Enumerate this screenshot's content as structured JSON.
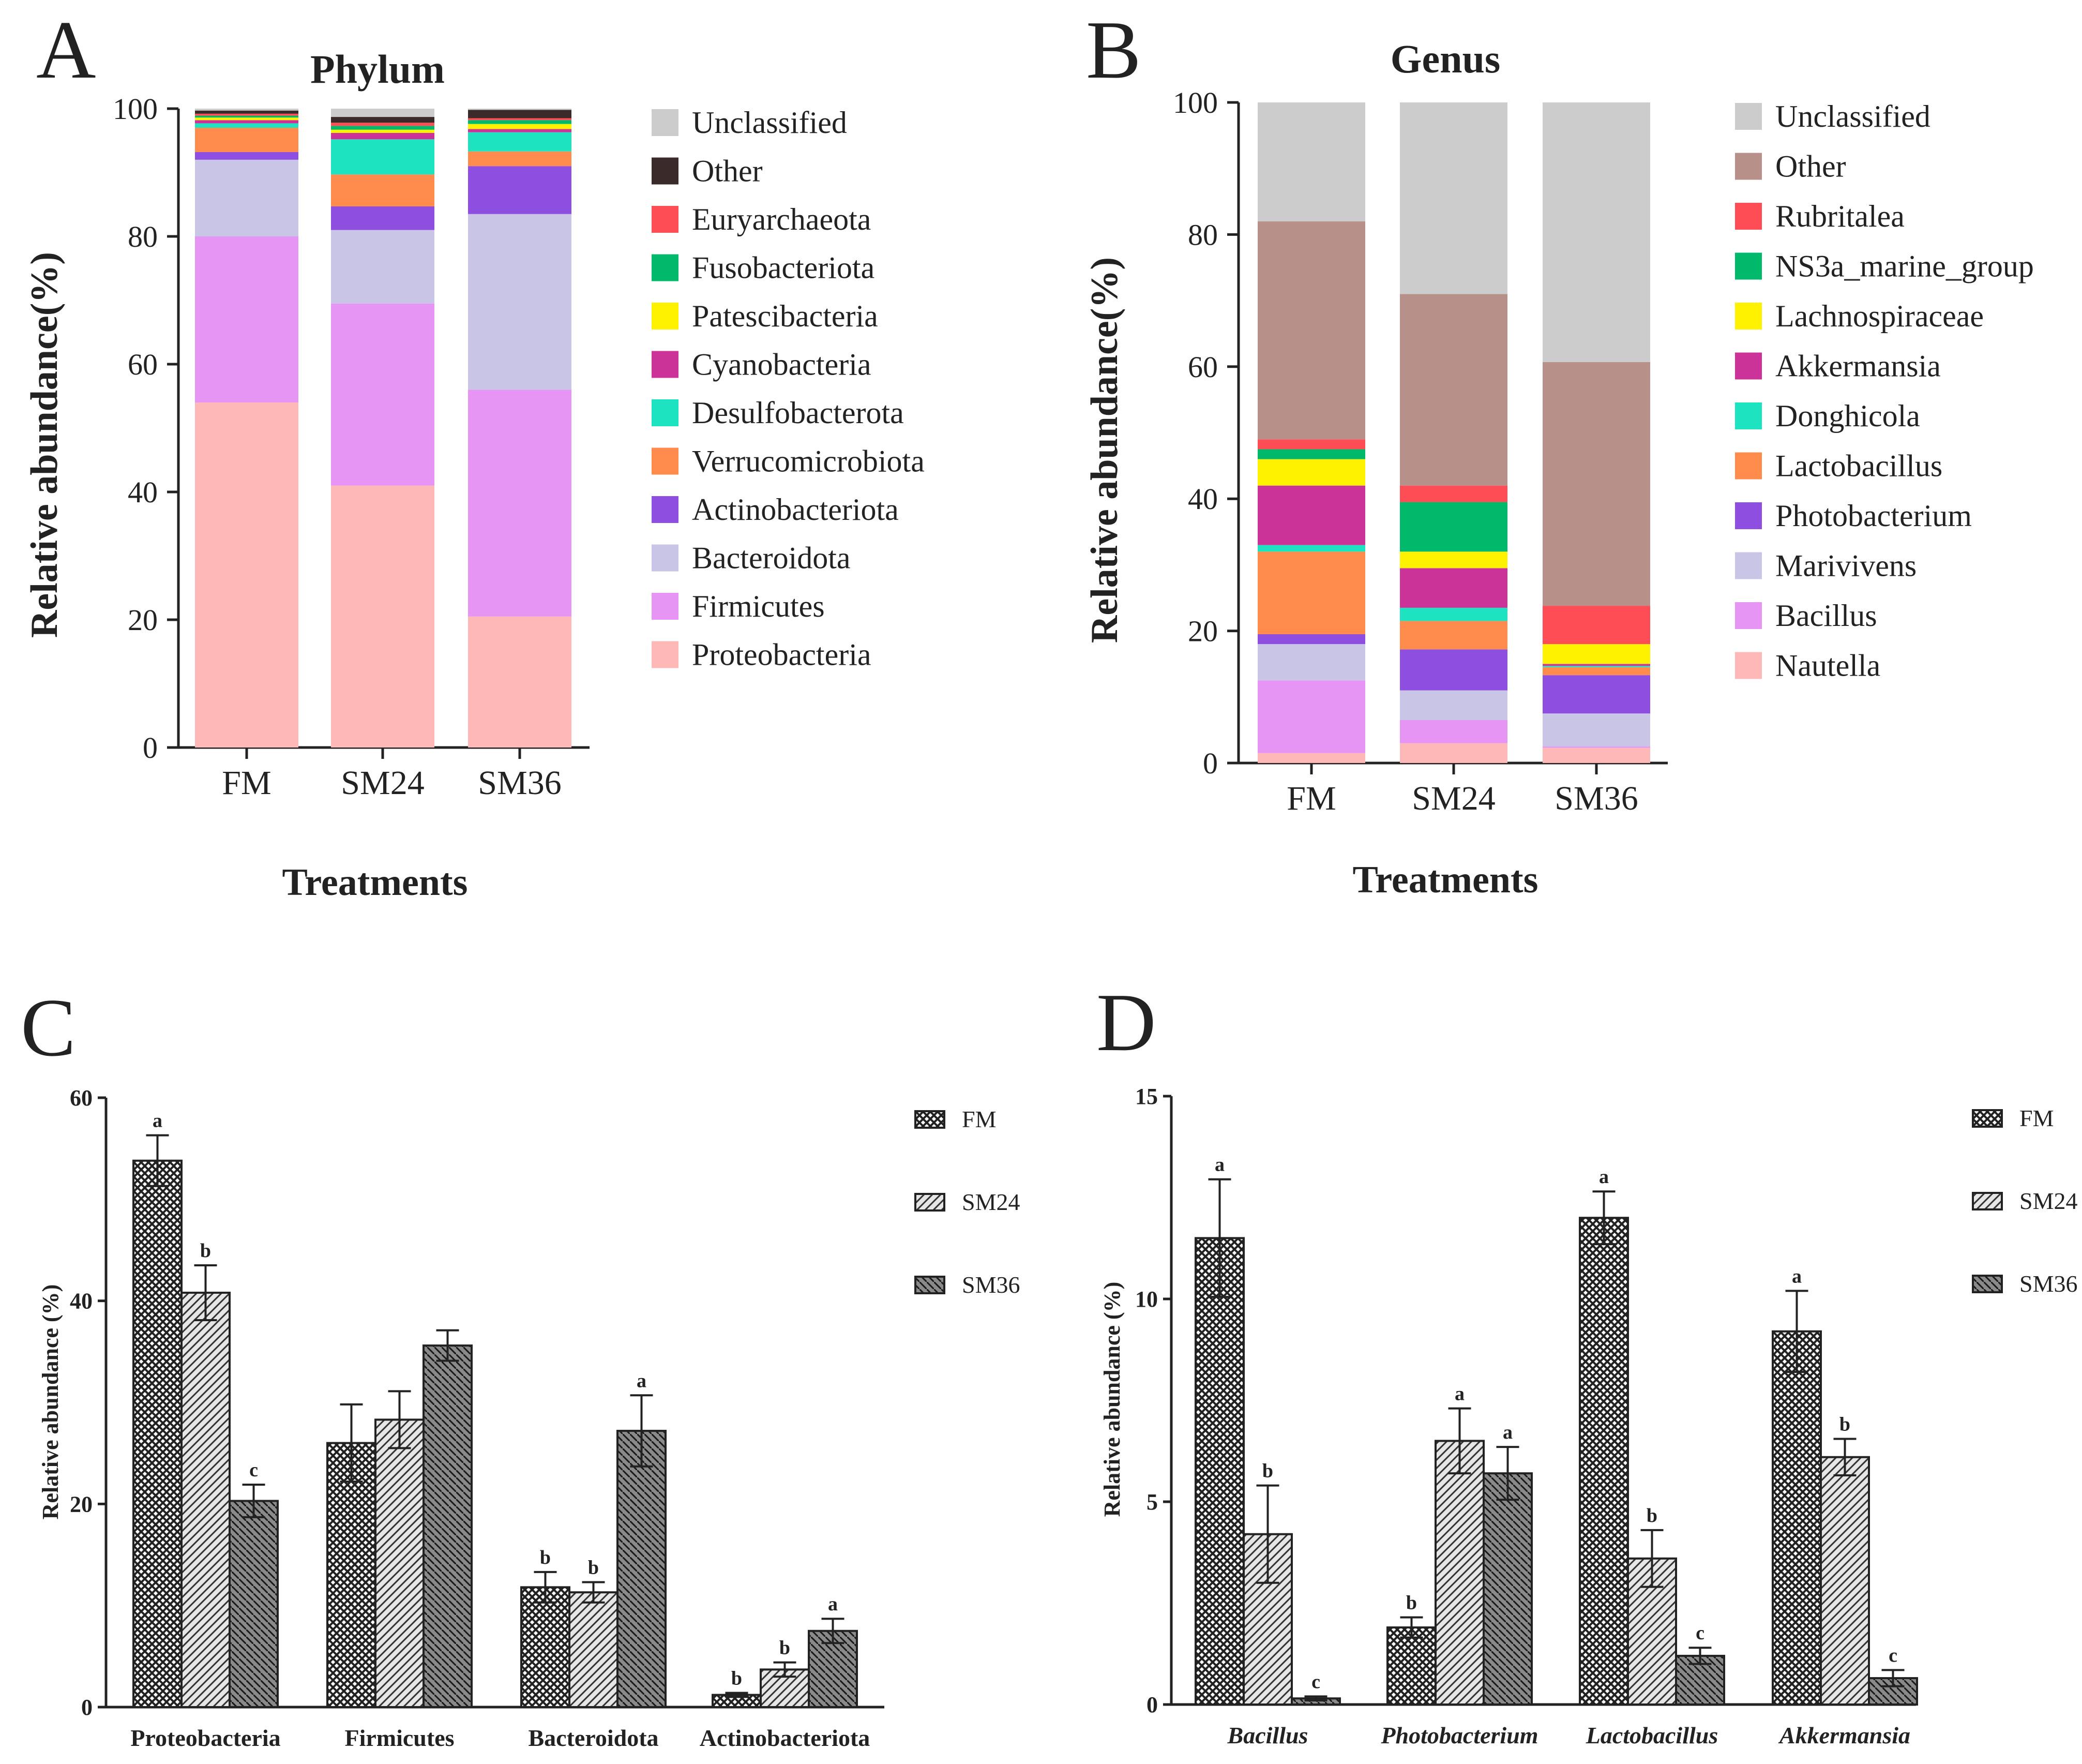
{
  "panels": {
    "A": "A",
    "B": "B",
    "C": "C",
    "D": "D"
  },
  "chart_data": [
    {
      "id": "A",
      "type": "bar",
      "stacked": true,
      "title": "Phylum",
      "xlabel": "Treatments",
      "ylabel": "Relative abundance(%)",
      "ylim": [
        0,
        100
      ],
      "yticks": [
        0,
        20,
        40,
        60,
        80,
        100
      ],
      "categories": [
        "FM",
        "SM24",
        "SM36"
      ],
      "series": [
        {
          "name": "Proteobacteria",
          "color": "#ffb8b8",
          "values": [
            54.0,
            41.0,
            20.5
          ]
        },
        {
          "name": "Firmicutes",
          "color": "#e695f5",
          "values": [
            26.0,
            28.5,
            35.5
          ]
        },
        {
          "name": "Bacteroidota",
          "color": "#c8c5e6",
          "values": [
            12.0,
            11.5,
            27.5
          ]
        },
        {
          "name": "Actinobacteriota",
          "color": "#8e4fe0",
          "values": [
            1.2,
            3.7,
            7.5
          ]
        },
        {
          "name": "Verrucomicrobiota",
          "color": "#ff8c4d",
          "values": [
            3.8,
            5.0,
            2.3
          ]
        },
        {
          "name": "Desulfobacterota",
          "color": "#1de3c0",
          "values": [
            0.7,
            5.5,
            3.0
          ]
        },
        {
          "name": "Cyanobacteria",
          "color": "#cc3399",
          "values": [
            0.5,
            1.0,
            0.5
          ]
        },
        {
          "name": "Patescibacteria",
          "color": "#fff200",
          "values": [
            0.4,
            0.5,
            0.8
          ]
        },
        {
          "name": "Fusobacteriota",
          "color": "#00b96b",
          "values": [
            0.3,
            0.6,
            0.6
          ]
        },
        {
          "name": "Euryarchaeota",
          "color": "#ff4d55",
          "values": [
            0.3,
            0.5,
            0.3
          ]
        },
        {
          "name": "Other",
          "color": "#3a2a2a",
          "values": [
            0.5,
            0.9,
            1.3
          ]
        },
        {
          "name": "Unclassified",
          "color": "#cccccc",
          "values": [
            0.3,
            1.3,
            0.2
          ]
        }
      ]
    },
    {
      "id": "B",
      "type": "bar",
      "stacked": true,
      "title": "Genus",
      "xlabel": "Treatments",
      "ylabel": "Relative abundance(%)",
      "ylim": [
        0,
        100
      ],
      "yticks": [
        0,
        20,
        40,
        60,
        80,
        100
      ],
      "categories": [
        "FM",
        "SM24",
        "SM36"
      ],
      "series": [
        {
          "name": "Nautella",
          "color": "#ffb8b8",
          "values": [
            1.5,
            3.0,
            2.3
          ]
        },
        {
          "name": "Bacillus",
          "color": "#e695f5",
          "values": [
            11.0,
            3.5,
            0.2
          ]
        },
        {
          "name": "Marivivens",
          "color": "#c8c5e6",
          "values": [
            5.5,
            4.5,
            5.0
          ]
        },
        {
          "name": "Photobacterium",
          "color": "#8e4fe0",
          "values": [
            1.5,
            6.2,
            5.8
          ]
        },
        {
          "name": "Lactobacillus",
          "color": "#ff8c4d",
          "values": [
            12.5,
            4.3,
            1.2
          ]
        },
        {
          "name": "Donghicola",
          "color": "#1de3c0",
          "values": [
            1.0,
            2.0,
            0.2
          ]
        },
        {
          "name": "Akkermansia",
          "color": "#cc3399",
          "values": [
            9.0,
            6.0,
            0.3
          ]
        },
        {
          "name": "Lachnospiraceae",
          "color": "#fff200",
          "values": [
            4.0,
            2.5,
            3.0
          ]
        },
        {
          "name": "NS3a_marine_group",
          "color": "#00b96b",
          "values": [
            1.5,
            7.5,
            0.0
          ]
        },
        {
          "name": "Rubritalea",
          "color": "#ff4d55",
          "values": [
            1.5,
            2.5,
            5.8
          ]
        },
        {
          "name": "Other",
          "color": "#b8908a",
          "values": [
            33.0,
            29.0,
            36.9
          ]
        },
        {
          "name": "Unclassified",
          "color": "#cccccc",
          "values": [
            18.0,
            29.0,
            39.3
          ]
        }
      ]
    },
    {
      "id": "C",
      "type": "bar",
      "stacked": false,
      "title": "",
      "xlabel": "",
      "ylabel": "Relative abundance (%)",
      "ylim": [
        0,
        60
      ],
      "yticks": [
        0,
        20,
        40,
        60
      ],
      "categories": [
        "Proteobacteria",
        "Firmicutes",
        "Bacteroidota",
        "Actinobacteriota"
      ],
      "italic_categories": false,
      "series": [
        {
          "name": "FM",
          "values": [
            53.8,
            26.0,
            11.8,
            1.2
          ],
          "errors": [
            2.5,
            3.8,
            1.5,
            0.2
          ],
          "letters": [
            "a",
            "",
            "b",
            "b"
          ]
        },
        {
          "name": "SM24",
          "values": [
            40.8,
            28.3,
            11.3,
            3.7
          ],
          "errors": [
            2.7,
            2.8,
            1.0,
            0.7
          ],
          "letters": [
            "b",
            "",
            "b",
            "b"
          ]
        },
        {
          "name": "SM36",
          "values": [
            20.3,
            35.6,
            27.2,
            7.5
          ],
          "errors": [
            1.6,
            1.5,
            3.5,
            1.2
          ],
          "letters": [
            "c",
            "",
            "a",
            "a"
          ]
        }
      ]
    },
    {
      "id": "D",
      "type": "bar",
      "stacked": false,
      "title": "",
      "xlabel": "",
      "ylabel": "Relative abundance (%)",
      "ylim": [
        0,
        15
      ],
      "yticks": [
        0,
        5,
        10,
        15
      ],
      "categories": [
        "Bacillus",
        "Photobacterium",
        "Lactobacillus",
        "Akkermansia"
      ],
      "italic_categories": true,
      "series": [
        {
          "name": "FM",
          "values": [
            11.5,
            1.9,
            12.0,
            9.2
          ],
          "errors": [
            1.45,
            0.25,
            0.65,
            1.0
          ],
          "letters": [
            "a",
            "b",
            "a",
            "a"
          ]
        },
        {
          "name": "SM24",
          "values": [
            4.2,
            6.5,
            3.6,
            6.1
          ],
          "errors": [
            1.2,
            0.8,
            0.7,
            0.45
          ],
          "letters": [
            "b",
            "a",
            "b",
            "b"
          ]
        },
        {
          "name": "SM36",
          "values": [
            0.15,
            5.7,
            1.2,
            0.65
          ],
          "errors": [
            0.05,
            0.65,
            0.2,
            0.2
          ],
          "letters": [
            "c",
            "a",
            "c",
            "c"
          ]
        }
      ]
    }
  ]
}
